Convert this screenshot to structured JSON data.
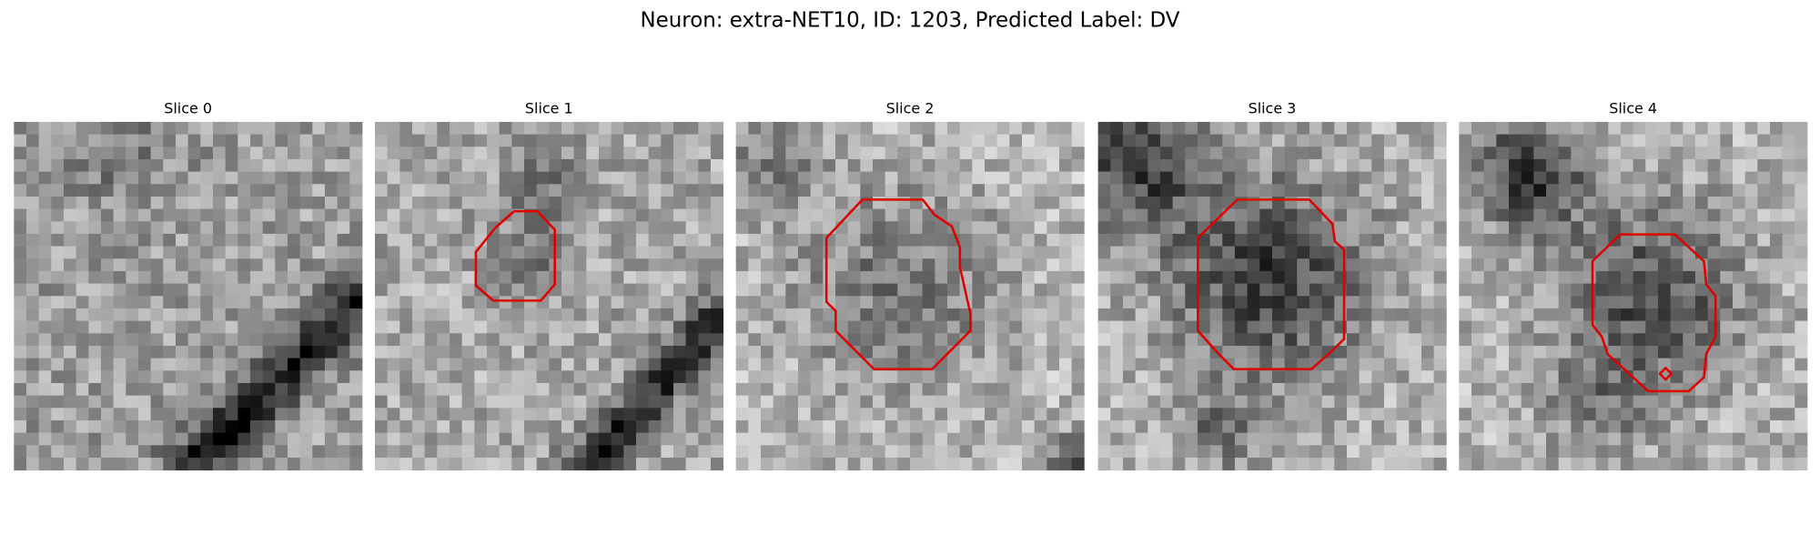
{
  "title": "Neuron: extra-NET10, ID: 1203, Predicted Label: DV",
  "panels": [
    {
      "title": "Slice 0"
    },
    {
      "title": "Slice 1"
    },
    {
      "title": "Slice 2"
    },
    {
      "title": "Slice 3"
    },
    {
      "title": "Slice 4"
    }
  ]
}
